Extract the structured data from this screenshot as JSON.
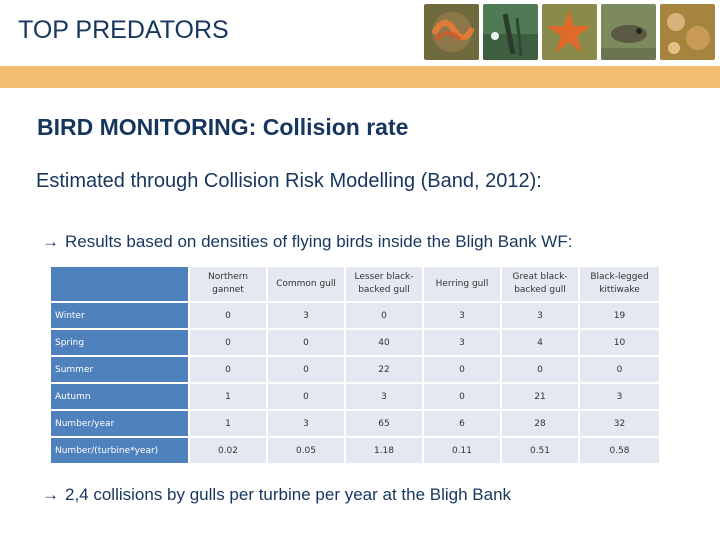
{
  "header": {
    "title": "TOP PREDATORS",
    "accent_color": "#f2bd6e",
    "title_color": "#17365d"
  },
  "photos": [
    {
      "icon": "worm-photo"
    },
    {
      "icon": "diver-photo"
    },
    {
      "icon": "starfish-photo"
    },
    {
      "icon": "fish-photo"
    },
    {
      "icon": "anemone-photo"
    }
  ],
  "content": {
    "subtitle": "BIRD MONITORING: Collision rate",
    "intro": "Estimated through Collision Risk Modelling (Band, 2012):",
    "results_note": "Results based on densities of flying birds inside the Bligh Bank WF:",
    "conclusion": "2,4 collisions by gulls per turbine per year at the Bligh Bank",
    "arrow_glyph": "→"
  },
  "table": {
    "columns": [
      [
        "Northern",
        "gannet"
      ],
      [
        "Common gull"
      ],
      [
        "Lesser black-",
        "backed gull"
      ],
      [
        "Herring gull"
      ],
      [
        "Great black-",
        "backed gull"
      ],
      [
        "Black-legged",
        "kittiwake"
      ]
    ],
    "rows": [
      {
        "label": "Winter",
        "values": [
          "0",
          "3",
          "0",
          "3",
          "3",
          "19"
        ]
      },
      {
        "label": "Spring",
        "values": [
          "0",
          "0",
          "40",
          "3",
          "4",
          "10"
        ]
      },
      {
        "label": "Summer",
        "values": [
          "0",
          "0",
          "22",
          "0",
          "0",
          "0"
        ]
      },
      {
        "label": "Autumn",
        "values": [
          "1",
          "0",
          "3",
          "0",
          "21",
          "3"
        ]
      },
      {
        "label": "Number/year",
        "values": [
          "1",
          "3",
          "65",
          "6",
          "28",
          "32"
        ]
      },
      {
        "label": "Number/(turbine*year)",
        "values": [
          "0.02",
          "0.05",
          "1.18",
          "0.11",
          "0.51",
          "0.58"
        ]
      }
    ],
    "header_color": "#4f81bd",
    "cell_color": "#e5e8f0"
  }
}
